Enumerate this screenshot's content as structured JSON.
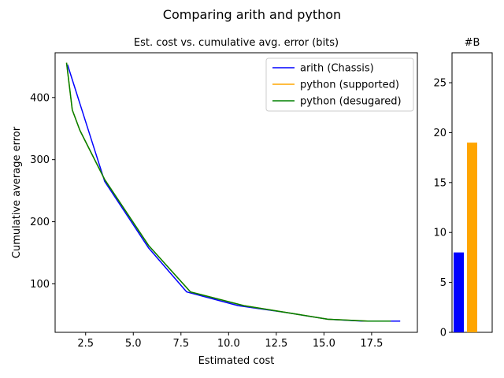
{
  "figure": {
    "title": "Comparing arith and python"
  },
  "chart_data": [
    {
      "type": "line",
      "title": "Est. cost vs. cumulative avg. error (bits)",
      "xlabel": "Estimated cost",
      "ylabel": "Cumulative average error",
      "xlim": [
        0.9,
        19.9
      ],
      "ylim": [
        22,
        472
      ],
      "xticks": [
        2.5,
        5.0,
        7.5,
        10.0,
        12.5,
        15.0,
        17.5
      ],
      "xtick_labels": [
        "2.5",
        "5.0",
        "7.5",
        "10.0",
        "12.5",
        "15.0",
        "17.5"
      ],
      "yticks": [
        100,
        200,
        300,
        400
      ],
      "ytick_labels": [
        "100",
        "200",
        "300",
        "400"
      ],
      "grid": false,
      "legend_position": "top-right",
      "series": [
        {
          "name": "arith (Chassis)",
          "color": "#0000ff",
          "x": [
            1.55,
            2.2,
            3.5,
            5.8,
            7.8,
            10.5,
            13.0,
            15.2,
            17.0,
            19.0
          ],
          "y": [
            453,
            390,
            265,
            158,
            87,
            65,
            54,
            43,
            40,
            40
          ]
        },
        {
          "name": "python (supported)",
          "color": "#ffa500",
          "x": [
            1.5,
            1.8,
            2.2,
            3.5,
            5.8,
            8.0,
            10.8,
            13.2,
            15.2,
            16.0,
            17.3,
            18.5
          ],
          "y": [
            456,
            380,
            347,
            268,
            162,
            87,
            65,
            53,
            43,
            42,
            40,
            40
          ]
        },
        {
          "name": "python (desugared)",
          "color": "#008000",
          "x": [
            1.5,
            1.8,
            2.2,
            3.5,
            5.8,
            8.0,
            10.8,
            13.2,
            15.2,
            16.0,
            17.3,
            18.5
          ],
          "y": [
            456,
            380,
            347,
            268,
            162,
            87,
            65,
            53,
            43,
            42,
            40,
            40
          ]
        }
      ]
    },
    {
      "type": "bar",
      "title": "#B",
      "ylim": [
        0,
        28
      ],
      "yticks": [
        0,
        5,
        10,
        15,
        20,
        25
      ],
      "ytick_labels": [
        "0",
        "5",
        "10",
        "15",
        "20",
        "25"
      ],
      "categories": [
        "arith (Chassis)",
        "python (supported)"
      ],
      "values": [
        8,
        19
      ],
      "colors": [
        "#0000ff",
        "#ffa500"
      ]
    }
  ]
}
